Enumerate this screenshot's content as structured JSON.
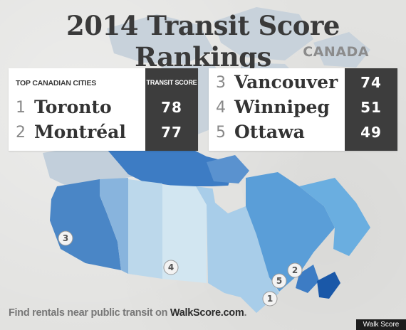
{
  "title": "2014 Transit Score Rankings",
  "subtitle": "CANADA",
  "left_table": {
    "header_cities": "TOP CANADIAN CITIES",
    "header_score": "TRANSIT SCORE",
    "rows": [
      {
        "rank": "1",
        "city": "Toronto",
        "score": "78"
      },
      {
        "rank": "2",
        "city": "Montréal",
        "score": "77"
      }
    ]
  },
  "right_table": {
    "rows": [
      {
        "rank": "3",
        "city": "Vancouver",
        "score": "74"
      },
      {
        "rank": "4",
        "city": "Winnipeg",
        "score": "51"
      },
      {
        "rank": "5",
        "city": "Ottawa",
        "score": "49"
      }
    ]
  },
  "map_markers": [
    {
      "label": "1",
      "city": "Toronto"
    },
    {
      "label": "2",
      "city": "Montréal"
    },
    {
      "label": "3",
      "city": "Vancouver"
    },
    {
      "label": "4",
      "city": "Winnipeg"
    },
    {
      "label": "5",
      "city": "Ottawa"
    }
  ],
  "colors": {
    "nunavut_nwt_outline": "#cad3dc",
    "british_columbia": "#4a86c6",
    "alberta": "#88b4dd",
    "saskatchewan": "#bcd8eb",
    "manitoba": "#d2e6f1",
    "ontario": "#a8cde9",
    "quebec": "#5a9ed8",
    "nova_scotia": "#1a58a8",
    "newfoundland": "#6aaee0",
    "nunavut_highlight": "#3d7cc4"
  },
  "footer": {
    "prefix": "Find rentals near public transit on ",
    "site": "WalkScore.com",
    "suffix": "."
  },
  "credit": "Walk Score"
}
